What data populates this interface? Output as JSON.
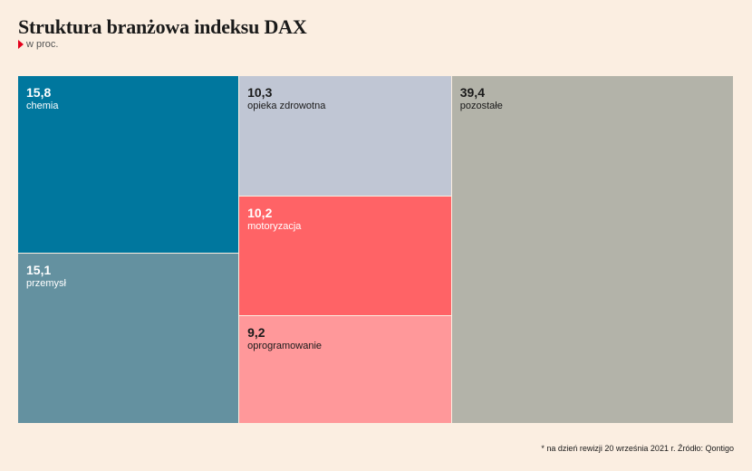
{
  "title": "Struktura branżowa indeksu DAX",
  "subtitle": "w proc.",
  "footnote": "* na dzień rewizji 20 września 2021 r. Źródło: Qontigo",
  "chart_data": {
    "type": "treemap",
    "title": "Struktura branżowa indeksu DAX",
    "unit": "w proc.",
    "items": [
      {
        "label": "chemia",
        "value_text": "15,8",
        "value": 15.8,
        "color": "#00779e",
        "text_color": "#ffffff"
      },
      {
        "label": "przemysł",
        "value_text": "15,1",
        "value": 15.1,
        "color": "#6491a0",
        "text_color": "#ffffff"
      },
      {
        "label": "opieka zdrowotna",
        "value_text": "10,3",
        "value": 10.3,
        "color": "#c0c6d4",
        "text_color": "#1a1a1a"
      },
      {
        "label": "motoryzacja",
        "value_text": "10,2",
        "value": 10.2,
        "color": "#ff6366",
        "text_color": "#ffffff"
      },
      {
        "label": "oprogramowanie",
        "value_text": "9,2",
        "value": 9.2,
        "color": "#ff989a",
        "text_color": "#1a1a1a"
      },
      {
        "label": "pozostałe",
        "value_text": "39,4",
        "value": 39.4,
        "color": "#b3b3a9",
        "text_color": "#1a1a1a"
      }
    ]
  }
}
